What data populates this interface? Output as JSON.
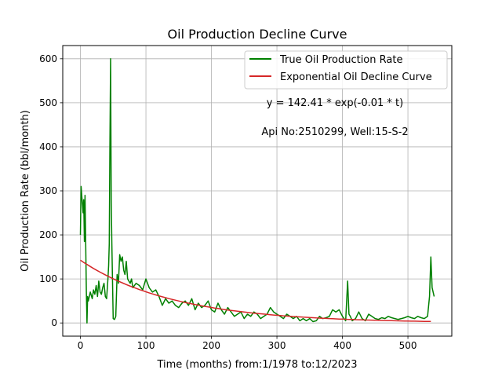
{
  "chart_data": {
    "type": "line",
    "title": "Oil Production Decline Curve",
    "xlabel": "Time (months) from:1/1978 to:12/2023",
    "ylabel": "Oil Production Rate (bbl/month)",
    "xlim": [
      -27,
      567
    ],
    "ylim": [
      -30,
      630
    ],
    "xticks": [
      0,
      100,
      200,
      300,
      400,
      500
    ],
    "yticks": [
      0,
      100,
      200,
      300,
      400,
      500,
      600
    ],
    "grid": true,
    "legend_position": "top-right",
    "annotations": [
      {
        "text": "y = 142.41 * exp(-0.01 * t)"
      },
      {
        "text": "Api No:2510299, Well:15-S-2"
      }
    ],
    "series": [
      {
        "name": "True Oil Production Rate",
        "color": "#008000",
        "x": [
          0,
          1,
          2,
          3,
          4,
          5,
          6,
          7,
          8,
          9,
          10,
          11,
          12,
          15,
          18,
          20,
          22,
          24,
          26,
          28,
          30,
          32,
          34,
          36,
          38,
          40,
          42,
          43,
          44,
          45,
          46,
          47,
          48,
          50,
          52,
          54,
          56,
          58,
          60,
          62,
          64,
          66,
          68,
          70,
          72,
          74,
          76,
          78,
          80,
          85,
          90,
          95,
          100,
          105,
          110,
          115,
          120,
          125,
          130,
          135,
          140,
          145,
          150,
          155,
          160,
          165,
          170,
          175,
          180,
          185,
          190,
          195,
          200,
          205,
          210,
          215,
          220,
          225,
          230,
          235,
          240,
          245,
          250,
          255,
          260,
          265,
          270,
          275,
          280,
          285,
          290,
          295,
          300,
          305,
          310,
          315,
          320,
          325,
          330,
          335,
          340,
          345,
          350,
          355,
          360,
          365,
          370,
          375,
          380,
          385,
          390,
          395,
          400,
          405,
          408,
          410,
          412,
          415,
          420,
          425,
          430,
          435,
          440,
          445,
          450,
          455,
          460,
          465,
          470,
          475,
          480,
          485,
          490,
          495,
          500,
          505,
          510,
          515,
          520,
          525,
          530,
          533,
          535,
          537,
          540
        ],
        "y": [
          200,
          310,
          290,
          270,
          250,
          280,
          185,
          290,
          190,
          70,
          0,
          60,
          50,
          70,
          55,
          75,
          65,
          85,
          60,
          95,
          70,
          65,
          80,
          90,
          60,
          55,
          100,
          130,
          180,
          400,
          600,
          280,
          180,
          10,
          8,
          15,
          110,
          90,
          155,
          140,
          150,
          120,
          110,
          140,
          100,
          95,
          90,
          100,
          80,
          90,
          85,
          75,
          100,
          80,
          70,
          75,
          60,
          40,
          55,
          45,
          50,
          40,
          35,
          45,
          50,
          40,
          55,
          30,
          45,
          35,
          40,
          50,
          30,
          25,
          45,
          30,
          20,
          35,
          25,
          15,
          20,
          25,
          10,
          20,
          15,
          25,
          20,
          10,
          15,
          20,
          35,
          25,
          20,
          15,
          10,
          20,
          15,
          10,
          15,
          5,
          10,
          5,
          10,
          3,
          5,
          15,
          10,
          12,
          15,
          30,
          25,
          30,
          15,
          5,
          95,
          20,
          15,
          5,
          10,
          25,
          10,
          5,
          20,
          15,
          10,
          8,
          12,
          10,
          15,
          12,
          10,
          8,
          10,
          12,
          15,
          12,
          10,
          15,
          12,
          10,
          15,
          60,
          150,
          80,
          60
        ]
      },
      {
        "name": "Exponential Oil Decline Curve",
        "color": "#d62728",
        "equation": "y = 142.41 * exp(-0.01 * t)",
        "a": 142.41,
        "b": 0.007,
        "x_range": [
          0,
          535
        ]
      }
    ]
  }
}
